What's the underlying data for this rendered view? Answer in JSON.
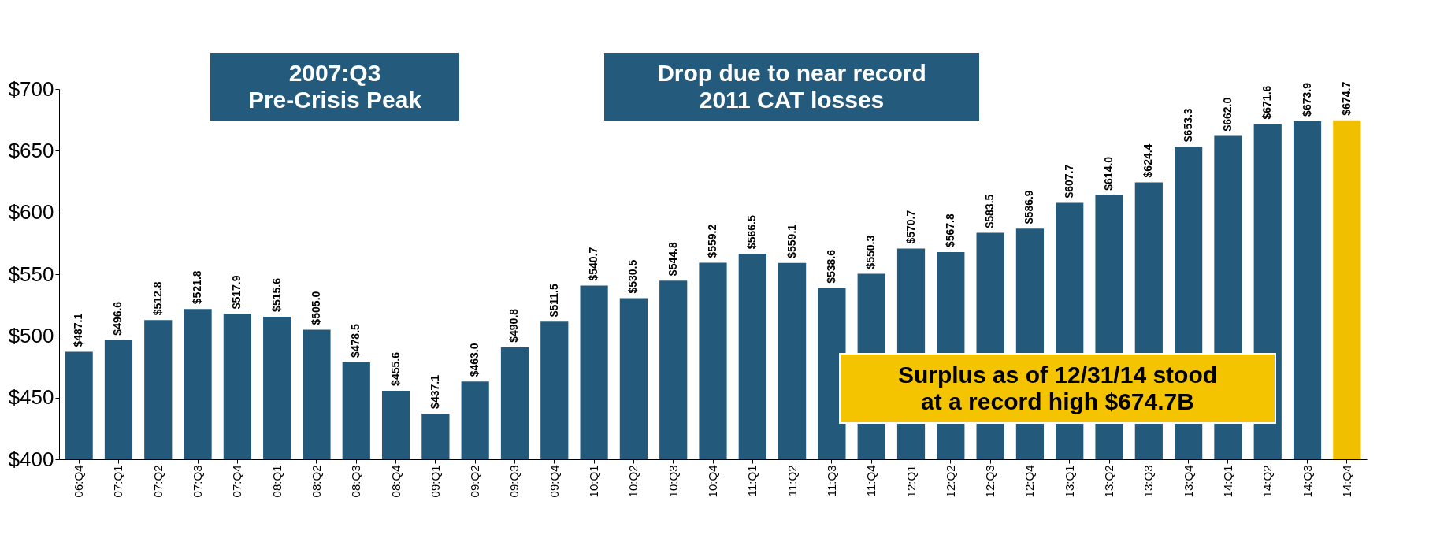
{
  "chart_data": {
    "type": "bar",
    "categories": [
      "06:Q4",
      "07:Q1",
      "07:Q2",
      "07:Q3",
      "07:Q4",
      "08:Q1",
      "08:Q2",
      "08:Q3",
      "08:Q4",
      "09:Q1",
      "09:Q2",
      "09:Q3",
      "09:Q4",
      "10:Q1",
      "10:Q2",
      "10:Q3",
      "10:Q4",
      "11:Q1",
      "11:Q2",
      "11:Q3",
      "11:Q4",
      "12:Q1",
      "12:Q2",
      "12:Q3",
      "12:Q4",
      "13:Q1",
      "13:Q2",
      "13:Q3",
      "13:Q4",
      "14:Q1",
      "14:Q2",
      "14:Q3",
      "14:Q4"
    ],
    "values": [
      487.1,
      496.6,
      512.8,
      521.8,
      517.9,
      515.6,
      505.0,
      478.5,
      455.6,
      437.1,
      463.0,
      490.8,
      511.5,
      540.7,
      530.5,
      544.8,
      559.2,
      566.5,
      559.1,
      538.6,
      550.3,
      570.7,
      567.8,
      583.5,
      586.9,
      607.7,
      614.0,
      624.4,
      653.3,
      662.0,
      671.6,
      673.9,
      674.7
    ],
    "value_labels": [
      "$487.1",
      "$496.6",
      "$512.8",
      "$521.8",
      "$517.9",
      "$515.6",
      "$505.0",
      "$478.5",
      "$455.6",
      "$437.1",
      "$463.0",
      "$490.8",
      "$511.5",
      "$540.7",
      "$530.5",
      "$544.8",
      "$559.2",
      "$566.5",
      "$559.1",
      "$538.6",
      "$550.3",
      "$570.7",
      "$567.8",
      "$583.5",
      "$586.9",
      "$607.7",
      "$614.0",
      "$624.4",
      "$653.3",
      "$662.0",
      "$671.6",
      "$673.9",
      "$674.7"
    ],
    "colors": [
      "#235a7c",
      "#235a7c",
      "#235a7c",
      "#235a7c",
      "#235a7c",
      "#235a7c",
      "#235a7c",
      "#235a7c",
      "#235a7c",
      "#235a7c",
      "#235a7c",
      "#235a7c",
      "#235a7c",
      "#235a7c",
      "#235a7c",
      "#235a7c",
      "#235a7c",
      "#235a7c",
      "#235a7c",
      "#235a7c",
      "#235a7c",
      "#235a7c",
      "#235a7c",
      "#235a7c",
      "#235a7c",
      "#235a7c",
      "#235a7c",
      "#235a7c",
      "#235a7c",
      "#235a7c",
      "#235a7c",
      "#235a7c",
      "#f0c000"
    ],
    "ylim": [
      400,
      700
    ],
    "yticks": [
      {
        "value": 400,
        "label": "$400"
      },
      {
        "value": 450,
        "label": "$450"
      },
      {
        "value": 500,
        "label": "$500"
      },
      {
        "value": 550,
        "label": "$550"
      },
      {
        "value": 600,
        "label": "$600"
      },
      {
        "value": 650,
        "label": "$650"
      },
      {
        "value": 700,
        "label": "$700"
      }
    ],
    "grid": false,
    "annotations": [
      "2007:Q3\nPre-Crisis Peak",
      "Drop due to near record\n2011 CAT losses",
      "Surplus as of 12/31/14 stood\nat a record high $674.7B"
    ]
  }
}
